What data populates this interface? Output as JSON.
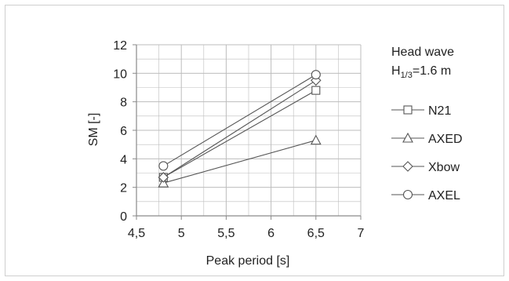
{
  "chart_data": {
    "type": "line",
    "title": "",
    "xlabel": "Peak period [s]",
    "ylabel": "SM [-]",
    "xlim": [
      4.5,
      7
    ],
    "ylim": [
      0,
      12
    ],
    "x_ticks": [
      "4,5",
      "5",
      "5,5",
      "6",
      "6,5",
      "7"
    ],
    "y_ticks": [
      "0",
      "2",
      "4",
      "6",
      "8",
      "10",
      "12"
    ],
    "grid": true,
    "legend_position": "right",
    "annotation": {
      "line1": "Head wave",
      "line2_main": "H",
      "line2_sub": "1/3",
      "line2_rest": "=1.6 m"
    },
    "series": [
      {
        "name": "N21",
        "marker": "square",
        "x": [
          4.8,
          6.5
        ],
        "y": [
          2.7,
          8.8
        ]
      },
      {
        "name": "AXED",
        "marker": "triangle",
        "x": [
          4.8,
          6.5
        ],
        "y": [
          2.3,
          5.3
        ]
      },
      {
        "name": "Xbow",
        "marker": "diamond",
        "x": [
          4.8,
          6.5
        ],
        "y": [
          2.7,
          9.5
        ]
      },
      {
        "name": "AXEL",
        "marker": "circle",
        "x": [
          4.8,
          6.5
        ],
        "y": [
          3.5,
          9.9
        ]
      }
    ],
    "colors": {
      "series": "#555555",
      "grid": "#bdbdbd",
      "axis": "#8a8a8a",
      "frame": "#cfcfcf"
    }
  }
}
